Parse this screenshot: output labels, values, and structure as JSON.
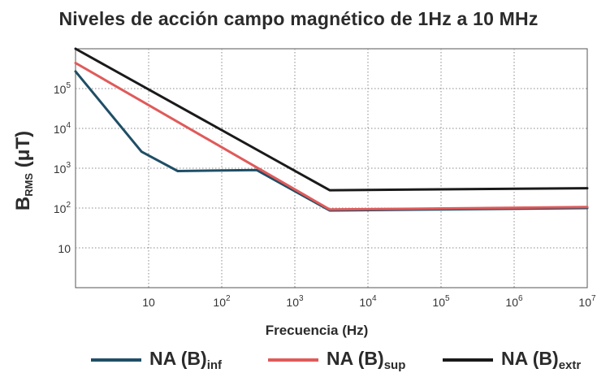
{
  "chart_data": {
    "type": "line",
    "title": "Niveles de acción campo magnético de 1Hz a 10 MHz",
    "xlabel": "Frecuencia (Hz)",
    "ylabel": "B",
    "ylabel_sub": "RMS",
    "ylabel_unit": " (μT)",
    "x_scale": "log",
    "y_scale": "log",
    "xlim": [
      1,
      10000000
    ],
    "ylim": [
      1,
      1000000
    ],
    "grid": true,
    "legend_position": "bottom",
    "x_ticks": [
      {
        "value": 10,
        "base": "10",
        "exp": ""
      },
      {
        "value": 100,
        "base": "10",
        "exp": "2"
      },
      {
        "value": 1000,
        "base": "10",
        "exp": "3"
      },
      {
        "value": 10000,
        "base": "10",
        "exp": "4"
      },
      {
        "value": 100000,
        "base": "10",
        "exp": "5"
      },
      {
        "value": 1000000,
        "base": "10",
        "exp": "6"
      },
      {
        "value": 10000000,
        "base": "10",
        "exp": "7"
      }
    ],
    "y_ticks": [
      {
        "value": 10,
        "base": "10",
        "exp": ""
      },
      {
        "value": 100,
        "base": "10",
        "exp": "2"
      },
      {
        "value": 1000,
        "base": "10",
        "exp": "3"
      },
      {
        "value": 10000,
        "base": "10",
        "exp": "4"
      },
      {
        "value": 100000,
        "base": "10",
        "exp": "5"
      }
    ],
    "series": [
      {
        "name": "NA (B)",
        "name_sub": "inf",
        "color": "#1f4e66",
        "points": [
          [
            1,
            270000
          ],
          [
            8,
            2600
          ],
          [
            25,
            850
          ],
          [
            300,
            900
          ],
          [
            3000,
            87
          ],
          [
            10000000,
            100
          ]
        ]
      },
      {
        "name": "NA (B)",
        "name_sub": "sup",
        "color": "#e05a5a",
        "points": [
          [
            1,
            440000
          ],
          [
            3000,
            92
          ],
          [
            10000000,
            106
          ]
        ]
      },
      {
        "name": "NA (B)",
        "name_sub": "extr",
        "color": "#1a1a1a",
        "points": [
          [
            1,
            1000000
          ],
          [
            3000,
            280
          ],
          [
            10000000,
            315
          ]
        ]
      }
    ]
  }
}
